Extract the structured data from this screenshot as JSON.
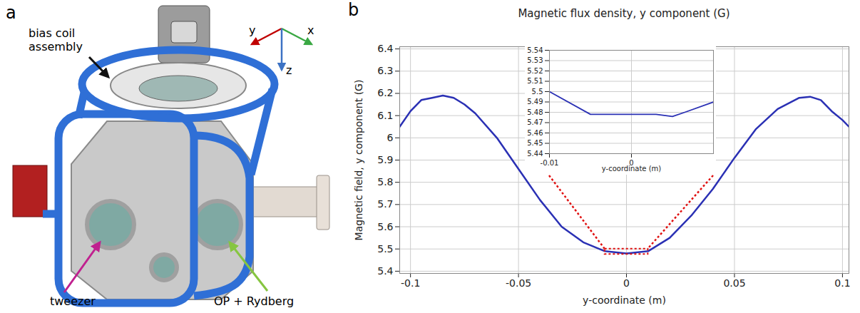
{
  "panel_labels": [
    "a",
    "b"
  ],
  "diagram": {
    "callouts": {
      "coil": "bias coil assembly",
      "tweezer": "tweezer",
      "beam": "OP + Rydberg"
    },
    "axes": {
      "x": "x",
      "y": "y",
      "z": "z"
    }
  },
  "chart_data": [
    {
      "type": "line",
      "title": "Magnetic flux density, y component (G)",
      "xlabel": "y-coordinate (m)",
      "ylabel": "Magnetic field, y component (G)",
      "x": [
        -0.105,
        -0.1,
        -0.095,
        -0.09,
        -0.085,
        -0.08,
        -0.075,
        -0.07,
        -0.06,
        -0.05,
        -0.04,
        -0.03,
        -0.02,
        -0.01,
        0,
        0.01,
        0.02,
        0.03,
        0.04,
        0.05,
        0.06,
        0.07,
        0.08,
        0.085,
        0.09,
        0.095,
        0.1,
        0.103
      ],
      "values": [
        6.05,
        6.12,
        6.17,
        6.18,
        6.19,
        6.18,
        6.15,
        6.11,
        6.0,
        5.86,
        5.72,
        5.6,
        5.53,
        5.49,
        5.48,
        5.49,
        5.55,
        5.65,
        5.77,
        5.91,
        6.04,
        6.13,
        6.18,
        6.185,
        6.17,
        6.12,
        6.08,
        6.05
      ],
      "color": "#2a30b4",
      "xlim": [
        -0.105,
        0.103
      ],
      "xticks": [
        -0.1,
        -0.05,
        0,
        0.05,
        0.1
      ],
      "ylim": [
        5.39,
        6.41
      ],
      "yticks": [
        5.4,
        5.5,
        5.6,
        5.7,
        5.8,
        5.9,
        6,
        6.1,
        6.2,
        6.3,
        6.4
      ],
      "grid": true
    },
    {
      "type": "line",
      "xlabel": "y-coordinate (m)",
      "x": [
        -0.01,
        -0.005,
        0,
        0.003,
        0.005,
        0.0065,
        0.01
      ],
      "values": [
        5.5,
        5.478,
        5.478,
        5.478,
        5.476,
        5.48,
        5.49
      ],
      "color": "#2a30b4",
      "xlim": [
        -0.01,
        0.01
      ],
      "xticks": [
        -0.01,
        0
      ],
      "ylim": [
        5.44,
        5.54
      ],
      "yticks": [
        5.44,
        5.45,
        5.46,
        5.47,
        5.48,
        5.49,
        5.5,
        5.51,
        5.52,
        5.53,
        5.54
      ],
      "grid": true
    }
  ]
}
